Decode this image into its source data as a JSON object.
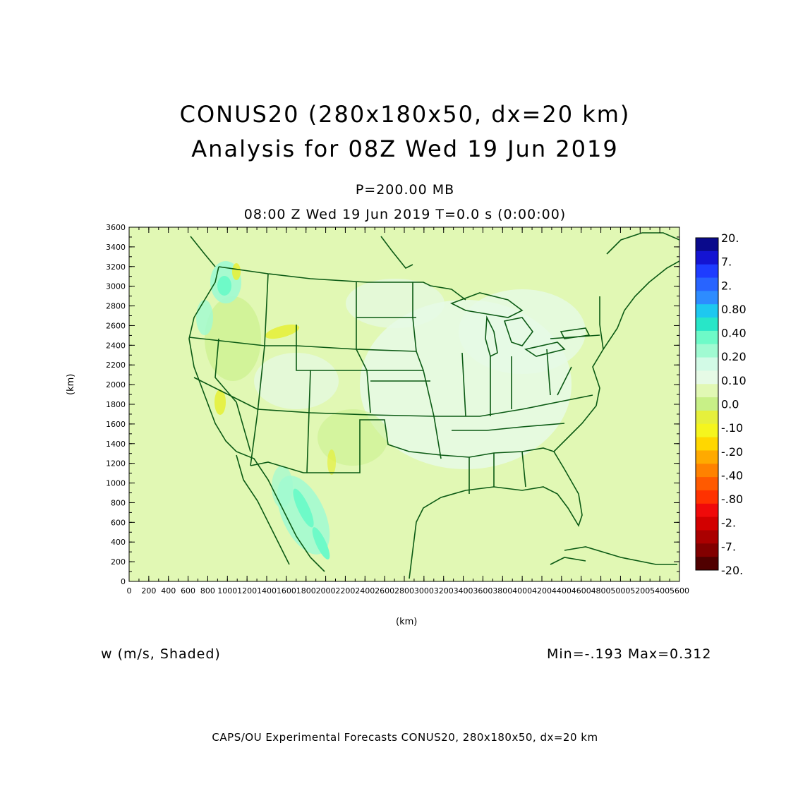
{
  "title": {
    "line1": "CONUS20 (280x180x50, dx=20 km)",
    "line2": "Analysis for 08Z Wed 19 Jun 2019"
  },
  "subtitle": {
    "level": "P=200.00 MB",
    "time": "08:00 Z Wed 19 Jun 2019   T=0.0 s (0:00:00)"
  },
  "axes": {
    "x_unit": "(km)",
    "y_unit": "(km)",
    "x_ticks": [
      "0",
      "200",
      "400",
      "600",
      "800",
      "1000",
      "1200",
      "1400",
      "1600",
      "1800",
      "2000",
      "2200",
      "2400",
      "2600",
      "2800",
      "3000",
      "3200",
      "3400",
      "3600",
      "3800",
      "4000",
      "4200",
      "4400",
      "4600",
      "4800",
      "5000",
      "5200",
      "5400",
      "5600"
    ],
    "y_ticks": [
      "0",
      "200",
      "400",
      "600",
      "800",
      "1000",
      "1200",
      "1400",
      "1600",
      "1800",
      "2000",
      "2200",
      "2400",
      "2600",
      "2800",
      "3000",
      "3200",
      "3400",
      "3600"
    ]
  },
  "variable_label": "w (m/s, Shaded)",
  "minmax_label": "Min=-.193 Max=0.312",
  "footer": "CAPS/OU Experimental Forecasts  CONUS20, 280x180x50, dx=20 km",
  "colorbar": {
    "labels": [
      "20.",
      "7.",
      "2.",
      "0.80",
      "0.40",
      "0.20",
      "0.10",
      "0.0",
      "-.10",
      "-.20",
      "-.40",
      "-.80",
      "-2.",
      "-7.",
      "-20."
    ],
    "colors": [
      "#0a0a8c",
      "#1414d2",
      "#1e3cff",
      "#2864ff",
      "#2d8cff",
      "#1ec8f0",
      "#28e6c8",
      "#6efac8",
      "#a0fad2",
      "#d2fae6",
      "#e6fae6",
      "#e1f8b4",
      "#c8f087",
      "#e6f03c",
      "#f5f51e",
      "#ffd700",
      "#ffaa00",
      "#ff8200",
      "#ff5a00",
      "#ff3200",
      "#f00a0a",
      "#d20000",
      "#aa0000",
      "#820000",
      "#500000"
    ],
    "value_range": [
      -20,
      20
    ]
  },
  "chart_data": {
    "type": "heatmap",
    "xlim": [
      0,
      5600
    ],
    "ylim": [
      0,
      3600
    ],
    "background_value": -0.05,
    "field_min": -0.193,
    "field_max": 0.312
  }
}
